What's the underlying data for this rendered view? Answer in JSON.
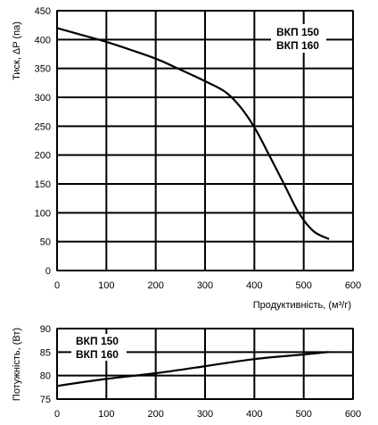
{
  "chart_data": [
    {
      "type": "line",
      "ylabel": "Тиск, ΔP (па)",
      "xlabel": "Продуктивність, (м³/г)",
      "xlim": [
        0,
        600
      ],
      "ylim": [
        0,
        450
      ],
      "x_ticks": [
        "0",
        "100",
        "200",
        "300",
        "400",
        "500",
        "600"
      ],
      "y_ticks": [
        "0",
        "50",
        "100",
        "150",
        "200",
        "250",
        "300",
        "350",
        "400",
        "450"
      ],
      "grid": true,
      "legend_position": "top-right",
      "legend": [
        "ВКП 150",
        "ВКП 160"
      ],
      "series": [
        {
          "x": [
            0,
            50,
            100,
            150,
            200,
            250,
            300,
            340,
            370,
            400,
            430,
            460,
            490,
            520,
            550
          ],
          "y": [
            420,
            408,
            396,
            382,
            367,
            348,
            328,
            310,
            285,
            248,
            200,
            150,
            100,
            68,
            55
          ]
        }
      ]
    },
    {
      "type": "line",
      "ylabel": "Потужність, (Вт)",
      "xlim": [
        0,
        600
      ],
      "ylim": [
        75,
        90
      ],
      "x_ticks": [
        "0",
        "100",
        "200",
        "300",
        "400",
        "500",
        "600"
      ],
      "y_ticks": [
        "75",
        "80",
        "85",
        "90"
      ],
      "grid": true,
      "legend_position": "top-left",
      "legend": [
        "ВКП 150",
        "ВКП 160"
      ],
      "series": [
        {
          "x": [
            0,
            100,
            200,
            300,
            400,
            500,
            550
          ],
          "y": [
            77.8,
            79.3,
            80.5,
            82.0,
            83.5,
            84.5,
            85.0
          ]
        }
      ]
    }
  ]
}
